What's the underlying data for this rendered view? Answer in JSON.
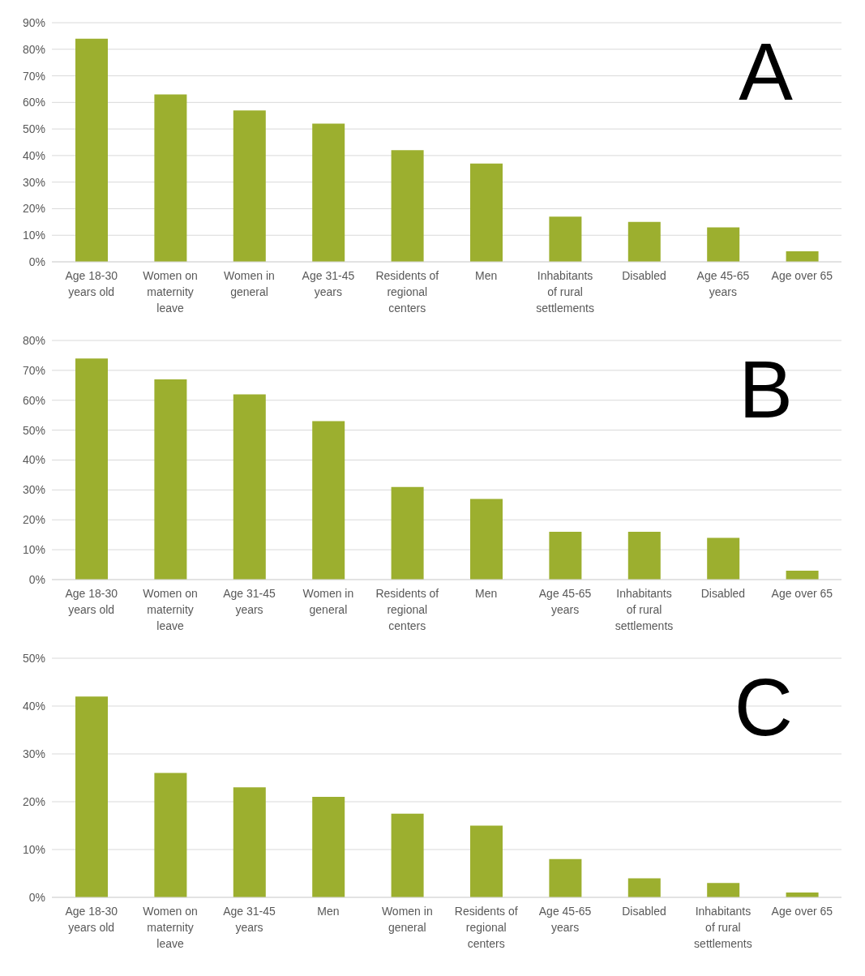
{
  "chart_data": [
    {
      "type": "bar",
      "annotations": [
        "A"
      ],
      "categories": [
        "Age 18-30 years old",
        "Women on maternity leave",
        "Women in general",
        "Age 31-45 years",
        "Residents of regional centers",
        "Men",
        "Inhabitants of rural settlements",
        "Disabled",
        "Age 45-65 years",
        "Age over 65"
      ],
      "values": [
        84,
        63,
        57,
        52,
        42,
        37,
        17,
        15,
        13,
        4
      ],
      "color": "#9caf2f",
      "ylim": [
        0,
        90
      ],
      "yticks": [
        {
          "value": 0,
          "label": "0%"
        },
        {
          "value": 10,
          "label": "10%"
        },
        {
          "value": 20,
          "label": "20%"
        },
        {
          "value": 30,
          "label": "30%"
        },
        {
          "value": 40,
          "label": "40%"
        },
        {
          "value": 50,
          "label": "50%"
        },
        {
          "value": 60,
          "label": "60%"
        },
        {
          "value": 70,
          "label": "70%"
        },
        {
          "value": 80,
          "label": "80%"
        },
        {
          "value": 90,
          "label": "90%"
        }
      ],
      "grid": "y"
    },
    {
      "type": "bar",
      "annotations": [
        "B"
      ],
      "categories": [
        "Age 18-30 years old",
        "Women on maternity leave",
        "Age 31-45 years",
        "Women in general",
        "Residents of regional centers",
        "Men",
        "Age 45-65 years",
        "Inhabitants of rural settlements",
        "Disabled",
        "Age over 65"
      ],
      "values": [
        74,
        67,
        62,
        53,
        31,
        27,
        16,
        16,
        14,
        3
      ],
      "color": "#9caf2f",
      "ylim": [
        0,
        80
      ],
      "yticks": [
        {
          "value": 0,
          "label": "0%"
        },
        {
          "value": 10,
          "label": "10%"
        },
        {
          "value": 20,
          "label": "20%"
        },
        {
          "value": 30,
          "label": "30%"
        },
        {
          "value": 40,
          "label": "40%"
        },
        {
          "value": 50,
          "label": "50%"
        },
        {
          "value": 60,
          "label": "60%"
        },
        {
          "value": 70,
          "label": "70%"
        },
        {
          "value": 80,
          "label": "80%"
        }
      ],
      "grid": "y"
    },
    {
      "type": "bar",
      "annotations": [
        "C"
      ],
      "categories": [
        "Age 18-30 years old",
        "Women on maternity leave",
        "Age 31-45 years",
        "Men",
        "Women in general",
        "Residents of regional centers",
        "Age 45-65 years",
        "Disabled",
        "Inhabitants of rural settlements",
        "Age over 65"
      ],
      "values": [
        42,
        26,
        23,
        21,
        17.5,
        15,
        8,
        4,
        3,
        1
      ],
      "color": "#9caf2f",
      "ylim": [
        0,
        50
      ],
      "yticks": [
        {
          "value": 0,
          "label": "0%"
        },
        {
          "value": 10,
          "label": "10%"
        },
        {
          "value": 20,
          "label": "20%"
        },
        {
          "value": 30,
          "label": "30%"
        },
        {
          "value": 40,
          "label": "40%"
        },
        {
          "value": 50,
          "label": "50%"
        }
      ],
      "grid": "y"
    }
  ]
}
